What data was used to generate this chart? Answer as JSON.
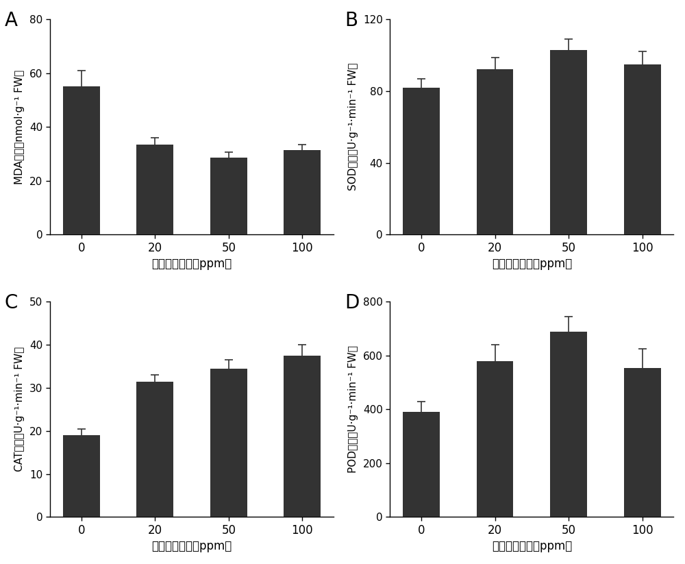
{
  "categories": [
    "0",
    "20",
    "50",
    "100"
  ],
  "xlabel": "多糖噴施浓度（ppm）",
  "bar_color": "#333333",
  "bar_width": 0.5,
  "panels": [
    {
      "label": "A",
      "ylabel_chinese": "MDA含量",
      "ylabel_latin": "（nmol·g⁻¹ FW）",
      "values": [
        55.0,
        33.5,
        28.5,
        31.5
      ],
      "errors": [
        6.0,
        2.5,
        2.0,
        2.0
      ],
      "ylim": [
        0,
        80
      ],
      "yticks": [
        0,
        20,
        40,
        60,
        80
      ]
    },
    {
      "label": "B",
      "ylabel_chinese": "SOD活性",
      "ylabel_latin": "（U·g⁻¹·min⁻¹ FW）",
      "values": [
        82.0,
        92.0,
        103.0,
        95.0
      ],
      "errors": [
        5.0,
        6.5,
        6.0,
        7.0
      ],
      "ylim": [
        0,
        120
      ],
      "yticks": [
        0,
        40,
        80,
        120
      ]
    },
    {
      "label": "C",
      "ylabel_chinese": "CAT活性",
      "ylabel_latin": "（U·g⁻¹·min⁻¹ FW）",
      "values": [
        19.0,
        31.5,
        34.5,
        37.5
      ],
      "errors": [
        1.5,
        1.5,
        2.0,
        2.5
      ],
      "ylim": [
        0,
        50
      ],
      "yticks": [
        0,
        10,
        20,
        30,
        40,
        50
      ]
    },
    {
      "label": "D",
      "ylabel_chinese": "POD活性",
      "ylabel_latin": "（U·g⁻¹·min⁻¹ FW）",
      "values": [
        390.0,
        580.0,
        690.0,
        555.0
      ],
      "errors": [
        40.0,
        60.0,
        55.0,
        70.0
      ],
      "ylim": [
        0,
        800
      ],
      "yticks": [
        0,
        200,
        400,
        600,
        800
      ]
    }
  ]
}
